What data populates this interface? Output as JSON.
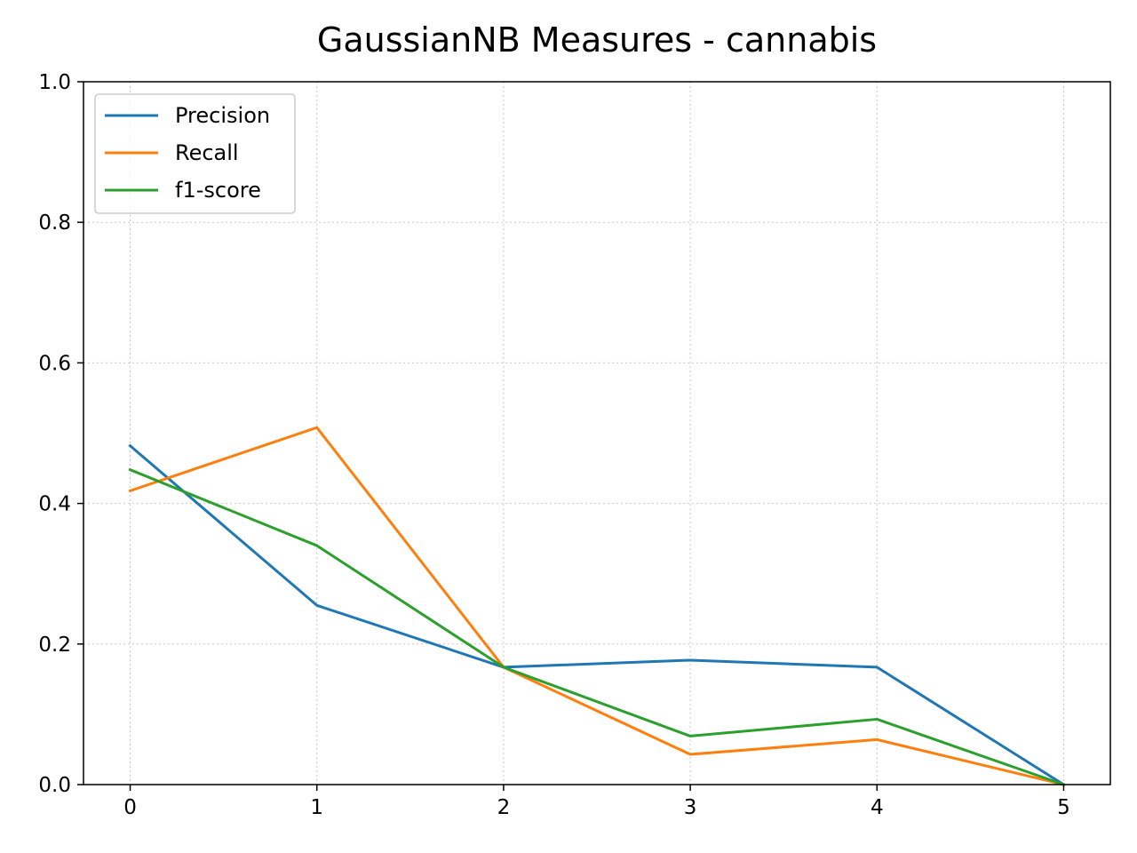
{
  "chart_data": {
    "type": "line",
    "title": "GaussianNB Measures - cannabis",
    "xlabel": "",
    "ylabel": "",
    "x": [
      0,
      1,
      2,
      3,
      4,
      5
    ],
    "xlim": [
      -0.25,
      5.25
    ],
    "ylim": [
      0,
      1
    ],
    "x_ticks": [
      "0",
      "1",
      "2",
      "3",
      "4",
      "5"
    ],
    "y_ticks": [
      "0.0",
      "0.2",
      "0.4",
      "0.6",
      "0.8",
      "1.0"
    ],
    "grid": true,
    "legend_position": "top-left",
    "series": [
      {
        "name": "Precision",
        "color": "#1f77b4",
        "values": [
          0.482,
          0.255,
          0.167,
          0.177,
          0.167,
          0.0
        ]
      },
      {
        "name": "Recall",
        "color": "#ff7f0e",
        "values": [
          0.418,
          0.508,
          0.167,
          0.043,
          0.064,
          0.0
        ]
      },
      {
        "name": "f1-score",
        "color": "#2ca02c",
        "values": [
          0.448,
          0.34,
          0.167,
          0.069,
          0.093,
          0.0
        ]
      }
    ]
  }
}
